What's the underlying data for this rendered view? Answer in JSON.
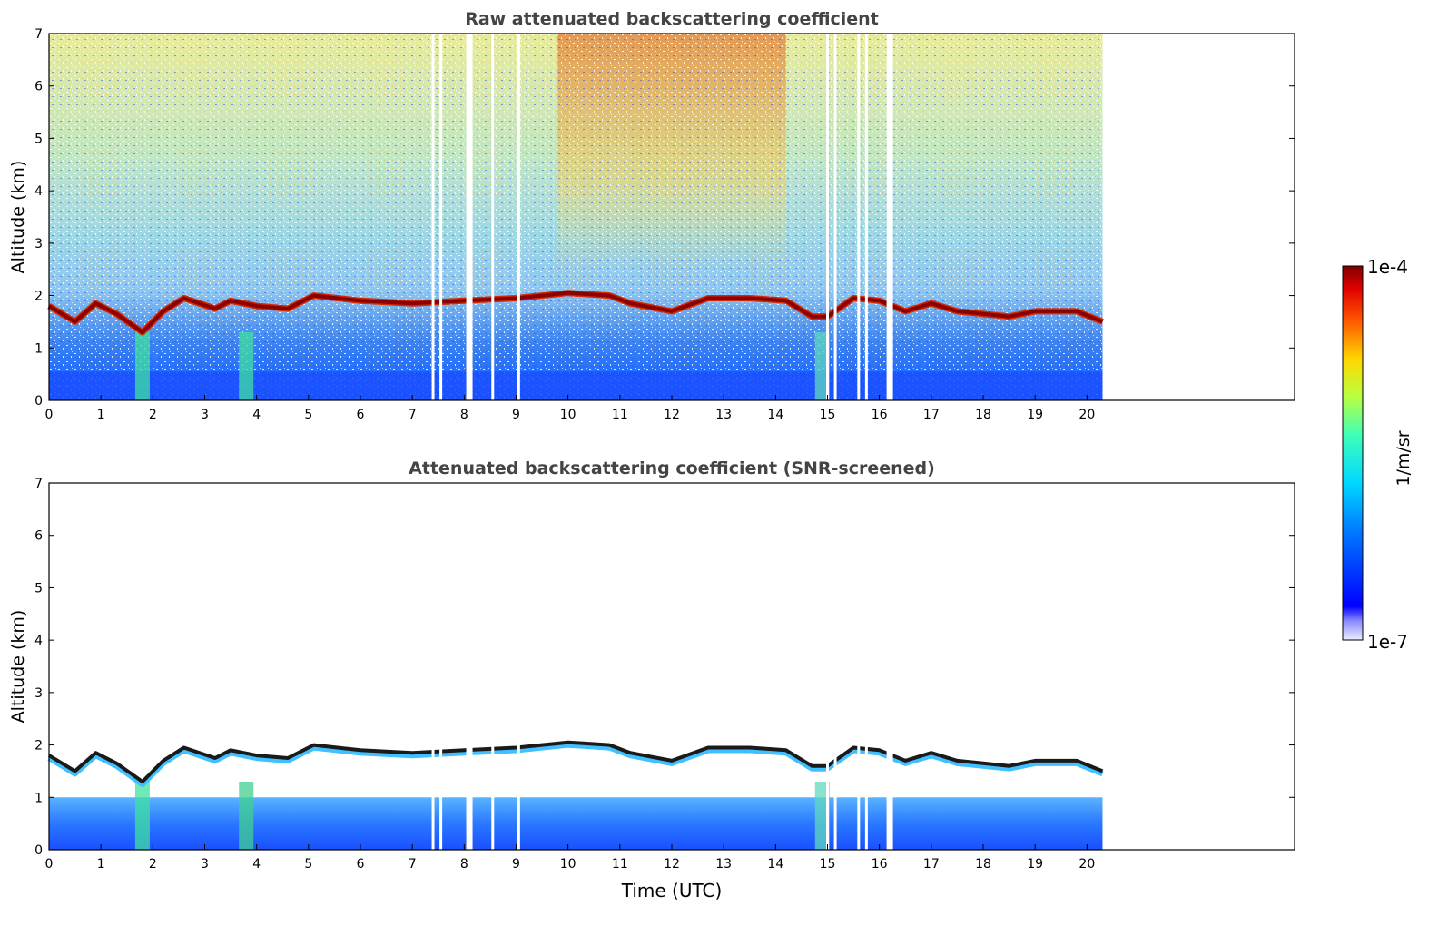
{
  "chart_data": [
    {
      "type": "heatmap",
      "title": "Raw attenuated backscattering coefficient",
      "xlabel": "",
      "ylabel": "Altitude (km)",
      "xlim": [
        0,
        24
      ],
      "ylim": [
        0,
        7
      ],
      "xticks": [
        0,
        1,
        2,
        3,
        4,
        5,
        6,
        7,
        8,
        9,
        10,
        11,
        12,
        13,
        14,
        15,
        16,
        17,
        18,
        19,
        20
      ],
      "yticks": [
        0,
        1,
        2,
        3,
        4,
        5,
        6,
        7
      ],
      "data_end_time": 20.3,
      "boundary_layer_top_km": [
        [
          0.0,
          1.8
        ],
        [
          0.5,
          1.5
        ],
        [
          0.9,
          1.85
        ],
        [
          1.3,
          1.65
        ],
        [
          1.8,
          1.3
        ],
        [
          2.2,
          1.7
        ],
        [
          2.6,
          1.95
        ],
        [
          3.2,
          1.75
        ],
        [
          3.5,
          1.9
        ],
        [
          4.0,
          1.8
        ],
        [
          4.6,
          1.75
        ],
        [
          5.1,
          2.0
        ],
        [
          6.0,
          1.9
        ],
        [
          7.0,
          1.85
        ],
        [
          8.0,
          1.9
        ],
        [
          9.0,
          1.95
        ],
        [
          10.0,
          2.05
        ],
        [
          10.8,
          2.0
        ],
        [
          11.2,
          1.85
        ],
        [
          12.0,
          1.7
        ],
        [
          12.7,
          1.95
        ],
        [
          13.5,
          1.95
        ],
        [
          14.2,
          1.9
        ],
        [
          14.7,
          1.6
        ],
        [
          15.0,
          1.6
        ],
        [
          15.5,
          1.95
        ],
        [
          16.0,
          1.9
        ],
        [
          16.5,
          1.7
        ],
        [
          17.0,
          1.85
        ],
        [
          17.5,
          1.7
        ],
        [
          18.0,
          1.65
        ],
        [
          18.5,
          1.6
        ],
        [
          19.0,
          1.7
        ],
        [
          19.8,
          1.7
        ],
        [
          20.3,
          1.5
        ]
      ],
      "data_gaps_utc": [
        7.4,
        7.55,
        8.1,
        8.55,
        9.05,
        15.0,
        15.15,
        15.6,
        15.75,
        16.2
      ]
    },
    {
      "type": "heatmap",
      "title": "Attenuated backscattering coefficient (SNR-screened)",
      "xlabel": "Time (UTC)",
      "ylabel": "Altitude (km)",
      "xlim": [
        0,
        24
      ],
      "ylim": [
        0,
        7
      ],
      "xticks": [
        0,
        1,
        2,
        3,
        4,
        5,
        6,
        7,
        8,
        9,
        10,
        11,
        12,
        13,
        14,
        15,
        16,
        17,
        18,
        19,
        20
      ],
      "yticks": [
        0,
        1,
        2,
        3,
        4,
        5,
        6,
        7
      ],
      "data_end_time": 20.3,
      "screened_clear_top_km": 1.0,
      "data_gaps_utc": [
        7.4,
        7.55,
        8.1,
        8.55,
        9.05,
        15.0,
        15.15,
        15.6,
        15.75,
        16.2
      ]
    }
  ],
  "colorbar": {
    "label": "1/m/sr",
    "max_label": "1e-4",
    "min_label": "1e-7",
    "range": [
      1e-07,
      0.0001
    ],
    "scale": "log",
    "colormap": "jet"
  },
  "colors": {
    "background": "#ffffff",
    "axis": "#000000",
    "title": "#444444",
    "boundary_layer": "#8b0000",
    "boundary_edge": "#d42a00",
    "low_signal": "#1e5cff"
  }
}
